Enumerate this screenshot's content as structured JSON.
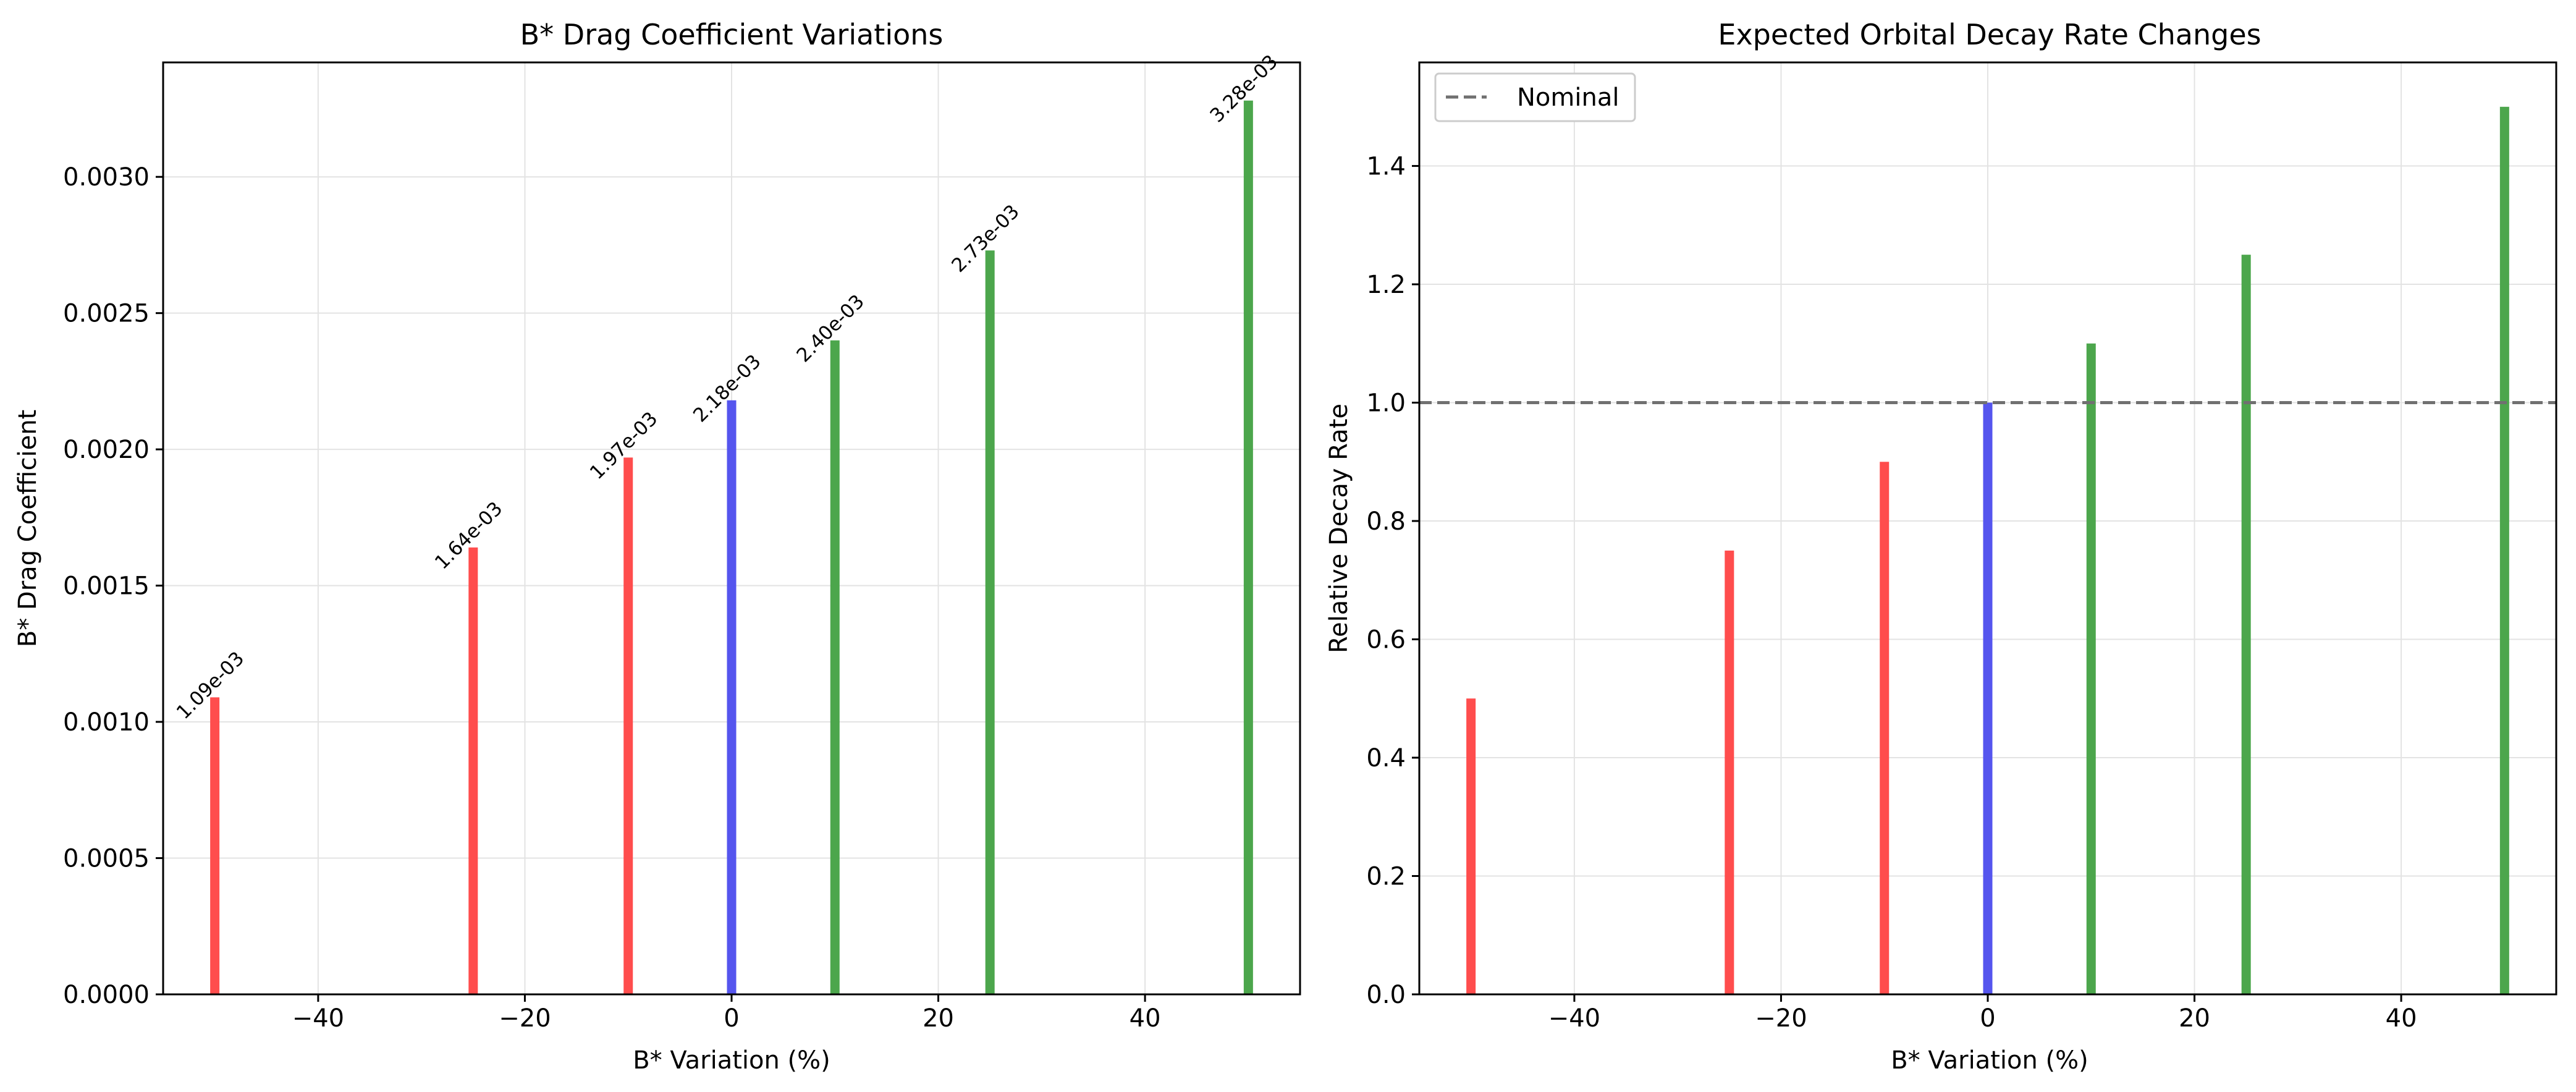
{
  "chart_data": [
    {
      "type": "bar",
      "title": "B* Drag Coefficient Variations",
      "xlabel": "B* Variation (%)",
      "ylabel": "B* Drag Coefficient",
      "xlim": [
        -55,
        55
      ],
      "ylim": [
        0,
        0.00342
      ],
      "grid": true,
      "x": [
        -50,
        -25,
        -10,
        0,
        10,
        25,
        50
      ],
      "values": [
        0.00109,
        0.00164,
        0.00197,
        0.00218,
        0.0024,
        0.00273,
        0.00328
      ],
      "colors": [
        "#ff4d4d",
        "#ff4d4d",
        "#ff4d4d",
        "#5555ee",
        "#4ca64c",
        "#4ca64c",
        "#4ca64c"
      ],
      "bar_labels": [
        "1.09e-03",
        "1.64e-03",
        "1.97e-03",
        "2.18e-03",
        "2.40e-03",
        "2.73e-03",
        "3.28e-03"
      ],
      "xticks": [
        -40,
        -20,
        0,
        20,
        40
      ],
      "xtick_labels": [
        "−40",
        "−20",
        "0",
        "20",
        "40"
      ],
      "yticks": [
        0,
        0.0005,
        0.001,
        0.0015,
        0.002,
        0.0025,
        0.003
      ],
      "ytick_labels": [
        "0.0000",
        "0.0005",
        "0.0010",
        "0.0015",
        "0.0020",
        "0.0025",
        "0.0030"
      ]
    },
    {
      "type": "bar",
      "title": "Expected Orbital Decay Rate Changes",
      "xlabel": "B* Variation (%)",
      "ylabel": "Relative Decay Rate",
      "xlim": [
        -55,
        55
      ],
      "ylim": [
        0,
        1.575
      ],
      "grid": true,
      "legend_position": "top-left",
      "x": [
        -50,
        -25,
        -10,
        0,
        10,
        25,
        50
      ],
      "values": [
        0.5,
        0.75,
        0.9,
        1.0,
        1.1,
        1.25,
        1.5
      ],
      "colors": [
        "#ff4d4d",
        "#ff4d4d",
        "#ff4d4d",
        "#5555ee",
        "#4ca64c",
        "#4ca64c",
        "#4ca64c"
      ],
      "reference_line": {
        "name": "Nominal",
        "y": 1.0,
        "color": "#707070",
        "style": "dashed"
      },
      "xticks": [
        -40,
        -20,
        0,
        20,
        40
      ],
      "xtick_labels": [
        "−40",
        "−20",
        "0",
        "20",
        "40"
      ],
      "yticks": [
        0,
        0.2,
        0.4,
        0.6,
        0.8,
        1.0,
        1.2,
        1.4
      ],
      "ytick_labels": [
        "0.0",
        "0.2",
        "0.4",
        "0.6",
        "0.8",
        "1.0",
        "1.2",
        "1.4"
      ]
    }
  ]
}
